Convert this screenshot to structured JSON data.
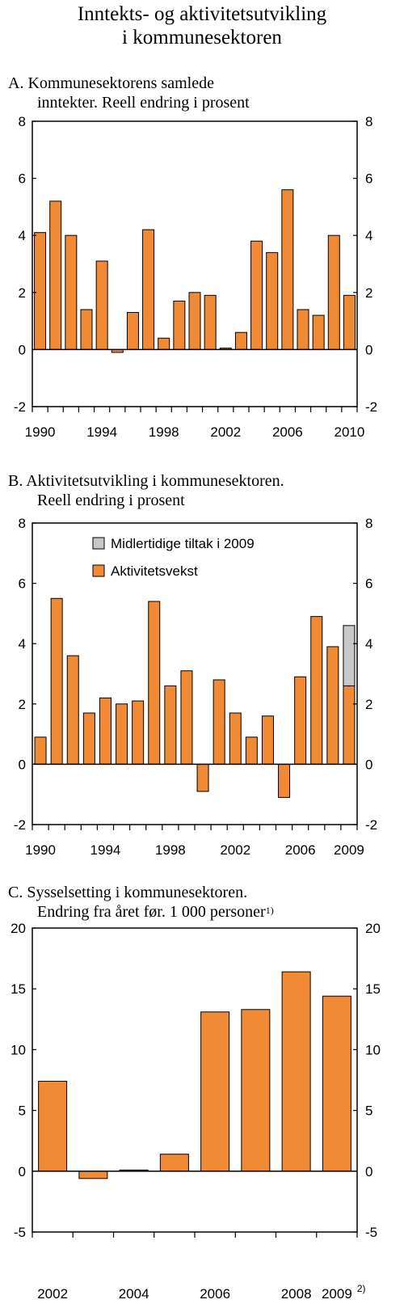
{
  "figure": {
    "title_line1": "Inntekts- og aktivitetsutvikling",
    "title_line2": "i kommunesektoren"
  },
  "colors": {
    "bar": "#F08A35",
    "temp": "#C8C8C8",
    "stroke": "#000000"
  },
  "chart_data": [
    {
      "id": "A",
      "type": "bar",
      "title_line1": "A.  Kommunesektorens samlede",
      "title_line2": "inntekter. Reell endring i prosent",
      "x": [
        1990,
        1991,
        1992,
        1993,
        1994,
        1995,
        1996,
        1997,
        1998,
        1999,
        2000,
        2001,
        2002,
        2003,
        2004,
        2005,
        2006,
        2007,
        2008,
        2009,
        2010
      ],
      "values": [
        4.1,
        5.2,
        4.0,
        1.4,
        3.1,
        -0.1,
        1.3,
        4.2,
        0.4,
        1.7,
        2.0,
        1.9,
        0.05,
        0.6,
        3.8,
        3.4,
        5.6,
        1.4,
        1.2,
        4.0,
        1.9
      ],
      "xticklabels": [
        "1990",
        "1994",
        "1998",
        "2002",
        "2006",
        "2010"
      ],
      "xtick_years": [
        1990,
        1994,
        1998,
        2002,
        2006,
        2010
      ],
      "ylim": [
        -2,
        8
      ],
      "yticks": [
        "-2",
        "0",
        "2",
        "4",
        "6",
        "8"
      ],
      "yticks_right": [
        "-2",
        "0",
        "2",
        "4",
        "6",
        "8"
      ],
      "grid": false
    },
    {
      "id": "B",
      "type": "bar",
      "stacked": true,
      "title_line1": "B.  Aktivitetsutvikling i kommunesektoren.",
      "title_line2": "Reell endring i prosent",
      "x": [
        1990,
        1991,
        1992,
        1993,
        1994,
        1995,
        1996,
        1997,
        1998,
        1999,
        2000,
        2001,
        2002,
        2003,
        2004,
        2005,
        2006,
        2007,
        2008,
        2009
      ],
      "series": [
        {
          "name": "Aktivitetsvekst",
          "values": [
            0.9,
            5.5,
            3.6,
            1.7,
            2.2,
            2.0,
            2.1,
            5.4,
            2.6,
            3.1,
            -0.9,
            2.8,
            1.7,
            0.9,
            1.6,
            -1.1,
            2.9,
            4.9,
            3.9,
            2.6
          ]
        },
        {
          "name": "Midlertidige tiltak i 2009",
          "values": [
            0,
            0,
            0,
            0,
            0,
            0,
            0,
            0,
            0,
            0,
            0,
            0,
            0,
            0,
            0,
            0,
            0,
            0,
            0,
            2.0
          ]
        }
      ],
      "legend_placement": "top-center",
      "xticklabels": [
        "1990",
        "1994",
        "1998",
        "2002",
        "2006",
        "2009"
      ],
      "xtick_years": [
        1990,
        1994,
        1998,
        2002,
        2006,
        2009
      ],
      "ylim": [
        -2,
        8
      ],
      "yticks": [
        "-2",
        "0",
        "2",
        "4",
        "6",
        "8"
      ],
      "yticks_right": [
        "-2",
        "0",
        "2",
        "4",
        "6",
        "8"
      ],
      "grid": false
    },
    {
      "id": "C",
      "type": "bar",
      "title_line1": "C.  Sysselsetting i kommunesektoren.",
      "title_line2": "Endring fra året før. 1 000 personer",
      "title_sup": "1)",
      "x": [
        2002,
        2003,
        2004,
        2005,
        2006,
        2007,
        2008,
        2009
      ],
      "values": [
        7.4,
        -0.6,
        0.1,
        1.4,
        13.1,
        13.3,
        16.4,
        14.4
      ],
      "xticklabels": [
        "2002",
        "2004",
        "2006",
        "2008",
        "2009"
      ],
      "xtick_years": [
        2002,
        2004,
        2006,
        2008,
        2009
      ],
      "xtick_footnote": "2)",
      "ylim": [
        -5,
        20
      ],
      "yticks": [
        "-5",
        "0",
        "5",
        "10",
        "15",
        "20"
      ],
      "yticks_right": [
        "-5",
        "0",
        "5",
        "10",
        "15",
        "20"
      ],
      "grid": false
    }
  ]
}
